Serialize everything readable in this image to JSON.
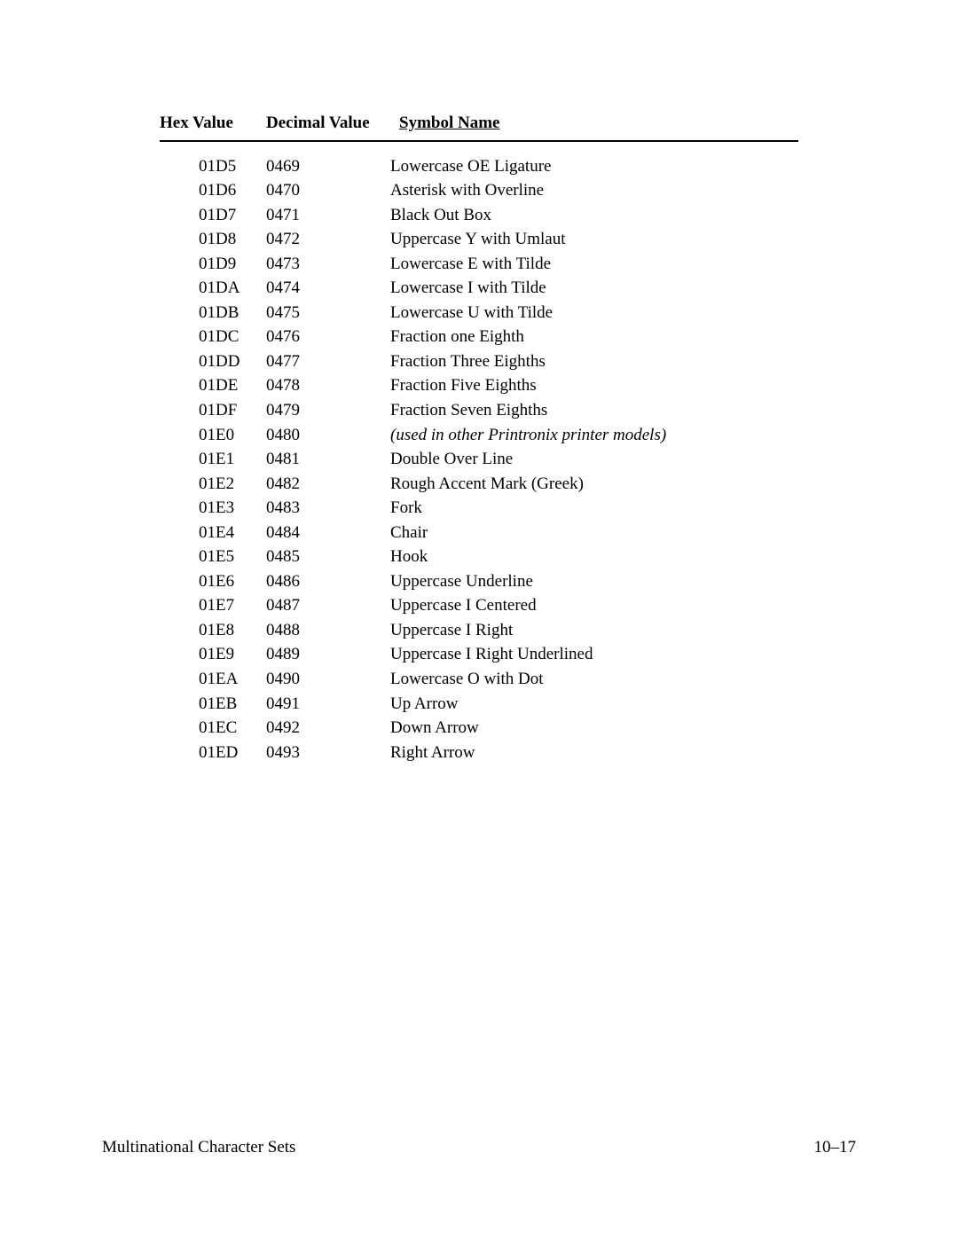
{
  "table": {
    "headers": {
      "hex": "Hex Value",
      "decimal": "Decimal Value",
      "symbol": "Symbol Name"
    },
    "col_widths": {
      "hex": 120,
      "dec": 135
    },
    "font_size": 19,
    "line_height": 1.45,
    "text_color": "#000000",
    "background_color": "#ffffff",
    "border_color": "#000000",
    "rows": [
      {
        "hex": "01D5",
        "decimal": "0469",
        "symbol": "Lowercase OE Ligature",
        "italic": false
      },
      {
        "hex": "01D6",
        "decimal": "0470",
        "symbol": "Asterisk with Overline",
        "italic": false
      },
      {
        "hex": "01D7",
        "decimal": "0471",
        "symbol": "Black Out Box",
        "italic": false
      },
      {
        "hex": "01D8",
        "decimal": "0472",
        "symbol": "Uppercase Y with Umlaut",
        "italic": false
      },
      {
        "hex": "01D9",
        "decimal": "0473",
        "symbol": "Lowercase E with Tilde",
        "italic": false
      },
      {
        "hex": "01DA",
        "decimal": "0474",
        "symbol": "Lowercase I with Tilde",
        "italic": false
      },
      {
        "hex": "01DB",
        "decimal": "0475",
        "symbol": "Lowercase U with Tilde",
        "italic": false
      },
      {
        "hex": "01DC",
        "decimal": "0476",
        "symbol": "Fraction one Eighth",
        "italic": false
      },
      {
        "hex": "01DD",
        "decimal": "0477",
        "symbol": "Fraction Three Eighths",
        "italic": false
      },
      {
        "hex": "01DE",
        "decimal": "0478",
        "symbol": "Fraction Five Eighths",
        "italic": false
      },
      {
        "hex": "01DF",
        "decimal": "0479",
        "symbol": "Fraction Seven Eighths",
        "italic": false
      },
      {
        "hex": "01E0",
        "decimal": "0480",
        "symbol": "(used in other Printronix printer models)",
        "italic": true
      },
      {
        "hex": "01E1",
        "decimal": "0481",
        "symbol": "Double Over Line",
        "italic": false
      },
      {
        "hex": "01E2",
        "decimal": "0482",
        "symbol": "Rough Accent Mark (Greek)",
        "italic": false
      },
      {
        "hex": "01E3",
        "decimal": "0483",
        "symbol": "Fork",
        "italic": false
      },
      {
        "hex": "01E4",
        "decimal": "0484",
        "symbol": "Chair",
        "italic": false
      },
      {
        "hex": "01E5",
        "decimal": "0485",
        "symbol": "Hook",
        "italic": false
      },
      {
        "hex": "01E6",
        "decimal": "0486",
        "symbol": "Uppercase Underline",
        "italic": false
      },
      {
        "hex": "01E7",
        "decimal": "0487",
        "symbol": "Uppercase I Centered",
        "italic": false
      },
      {
        "hex": "01E8",
        "decimal": "0488",
        "symbol": "Uppercase I Right",
        "italic": false
      },
      {
        "hex": "01E9",
        "decimal": "0489",
        "symbol": "Uppercase I Right Underlined",
        "italic": false
      },
      {
        "hex": "01EA",
        "decimal": "0490",
        "symbol": "Lowercase O with Dot",
        "italic": false
      },
      {
        "hex": "01EB",
        "decimal": "0491",
        "symbol": "Up Arrow",
        "italic": false
      },
      {
        "hex": "01EC",
        "decimal": "0492",
        "symbol": "Down Arrow",
        "italic": false
      },
      {
        "hex": "01ED",
        "decimal": "0493",
        "symbol": "Right Arrow",
        "italic": false
      }
    ]
  },
  "footer": {
    "left": "Multinational Character Sets",
    "right": "10–17"
  }
}
